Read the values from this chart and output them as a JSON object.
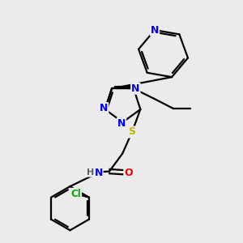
{
  "bg_color": "#ebebeb",
  "atom_colors": {
    "N": "#0000ff",
    "O": "#ff0000",
    "S": "#b8b800",
    "Cl": "#00aa00",
    "C": "#000000",
    "H": "#606060"
  },
  "bond_color": "#000000",
  "bond_width": 1.6
}
